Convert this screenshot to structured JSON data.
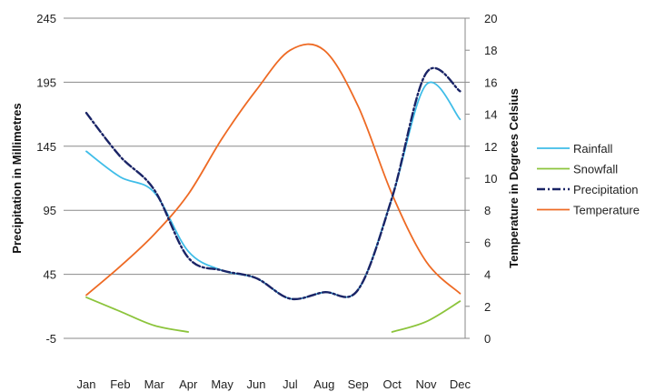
{
  "chart_data": {
    "type": "line",
    "categories": [
      "Jan",
      "Feb",
      "Mar",
      "Apr",
      "May",
      "Jun",
      "Jul",
      "Aug",
      "Sep",
      "Oct",
      "Nov",
      "Dec"
    ],
    "ylabel": "Precipitation in Millimetres",
    "y2label": "Temperature in Degrees Celsius",
    "ylim": [
      -5,
      245
    ],
    "y2lim": [
      0,
      20
    ],
    "yticks": [
      -5,
      45,
      95,
      145,
      195,
      245
    ],
    "y2ticks": [
      0,
      2,
      4,
      6,
      8,
      10,
      12,
      14,
      16,
      18,
      20
    ],
    "grid": true,
    "legend_position": "right",
    "series": [
      {
        "name": "Rainfall",
        "axis": "left",
        "color": "#3fbde8",
        "dash": "solid",
        "values": [
          141,
          121,
          109,
          63,
          48,
          42,
          26,
          31,
          33,
          105,
          193,
          166
        ]
      },
      {
        "name": "Snowfall",
        "axis": "left",
        "color": "#8cc43c",
        "dash": "solid",
        "values": [
          27,
          16,
          5,
          0,
          null,
          null,
          null,
          null,
          null,
          0,
          8,
          24
        ]
      },
      {
        "name": "Precipitation",
        "axis": "left",
        "color": "#1a2466",
        "dash": "dashdot",
        "values": [
          171,
          137,
          111,
          58,
          48,
          42,
          26,
          31,
          33,
          105,
          202,
          188
        ]
      },
      {
        "name": "Temperature",
        "axis": "right",
        "color": "#ee6a24",
        "dash": "solid",
        "values": [
          2.7,
          4.5,
          6.5,
          9.0,
          12.5,
          15.5,
          18.0,
          18.0,
          14.5,
          9.0,
          4.8,
          2.8
        ]
      }
    ]
  }
}
